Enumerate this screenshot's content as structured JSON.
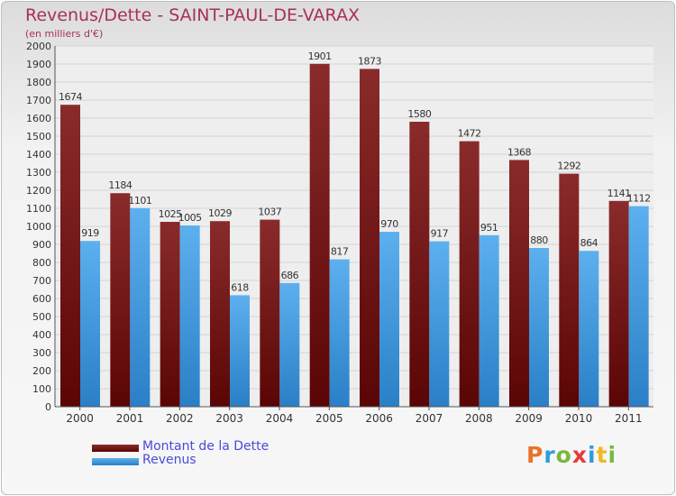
{
  "header": {
    "title": "Revenus/Dette - SAINT-PAUL-DE-VARAX",
    "subtitle": "(en milliers d'€)"
  },
  "legend": [
    {
      "label": "Montant de la Dette",
      "color": "#7a1414"
    },
    {
      "label": "Revenus",
      "color": "#3f9be0"
    }
  ],
  "logo": {
    "letters": [
      "P",
      "r",
      "o",
      "x",
      "i",
      "t",
      "i"
    ],
    "colors": [
      "#e8732a",
      "#2f9be0",
      "#7ab83c",
      "#e83a3a",
      "#2f9be0",
      "#f1b81c",
      "#7ab83c"
    ]
  },
  "chart_data": {
    "type": "bar",
    "title": "Revenus/Dette - SAINT-PAUL-DE-VARAX",
    "subtitle": "(en milliers d'€)",
    "categories": [
      "2000",
      "2001",
      "2002",
      "2003",
      "2004",
      "2005",
      "2006",
      "2007",
      "2008",
      "2009",
      "2010",
      "2011"
    ],
    "series": [
      {
        "name": "Montant de la Dette",
        "color": "#7a1414",
        "values": [
          1674,
          1184,
          1025,
          1029,
          1037,
          1901,
          1873,
          1580,
          1472,
          1368,
          1292,
          1141
        ]
      },
      {
        "name": "Revenus",
        "color": "#3f9be0",
        "values": [
          919,
          1101,
          1005,
          618,
          686,
          817,
          970,
          917,
          951,
          880,
          864,
          1112
        ]
      }
    ],
    "ylim": [
      0,
      2000
    ],
    "yticks": [
      0,
      100,
      200,
      300,
      400,
      500,
      600,
      700,
      800,
      900,
      1000,
      1100,
      1200,
      1300,
      1400,
      1500,
      1600,
      1700,
      1800,
      1900,
      2000
    ],
    "grid": true,
    "legend_position": "bottom-left"
  }
}
